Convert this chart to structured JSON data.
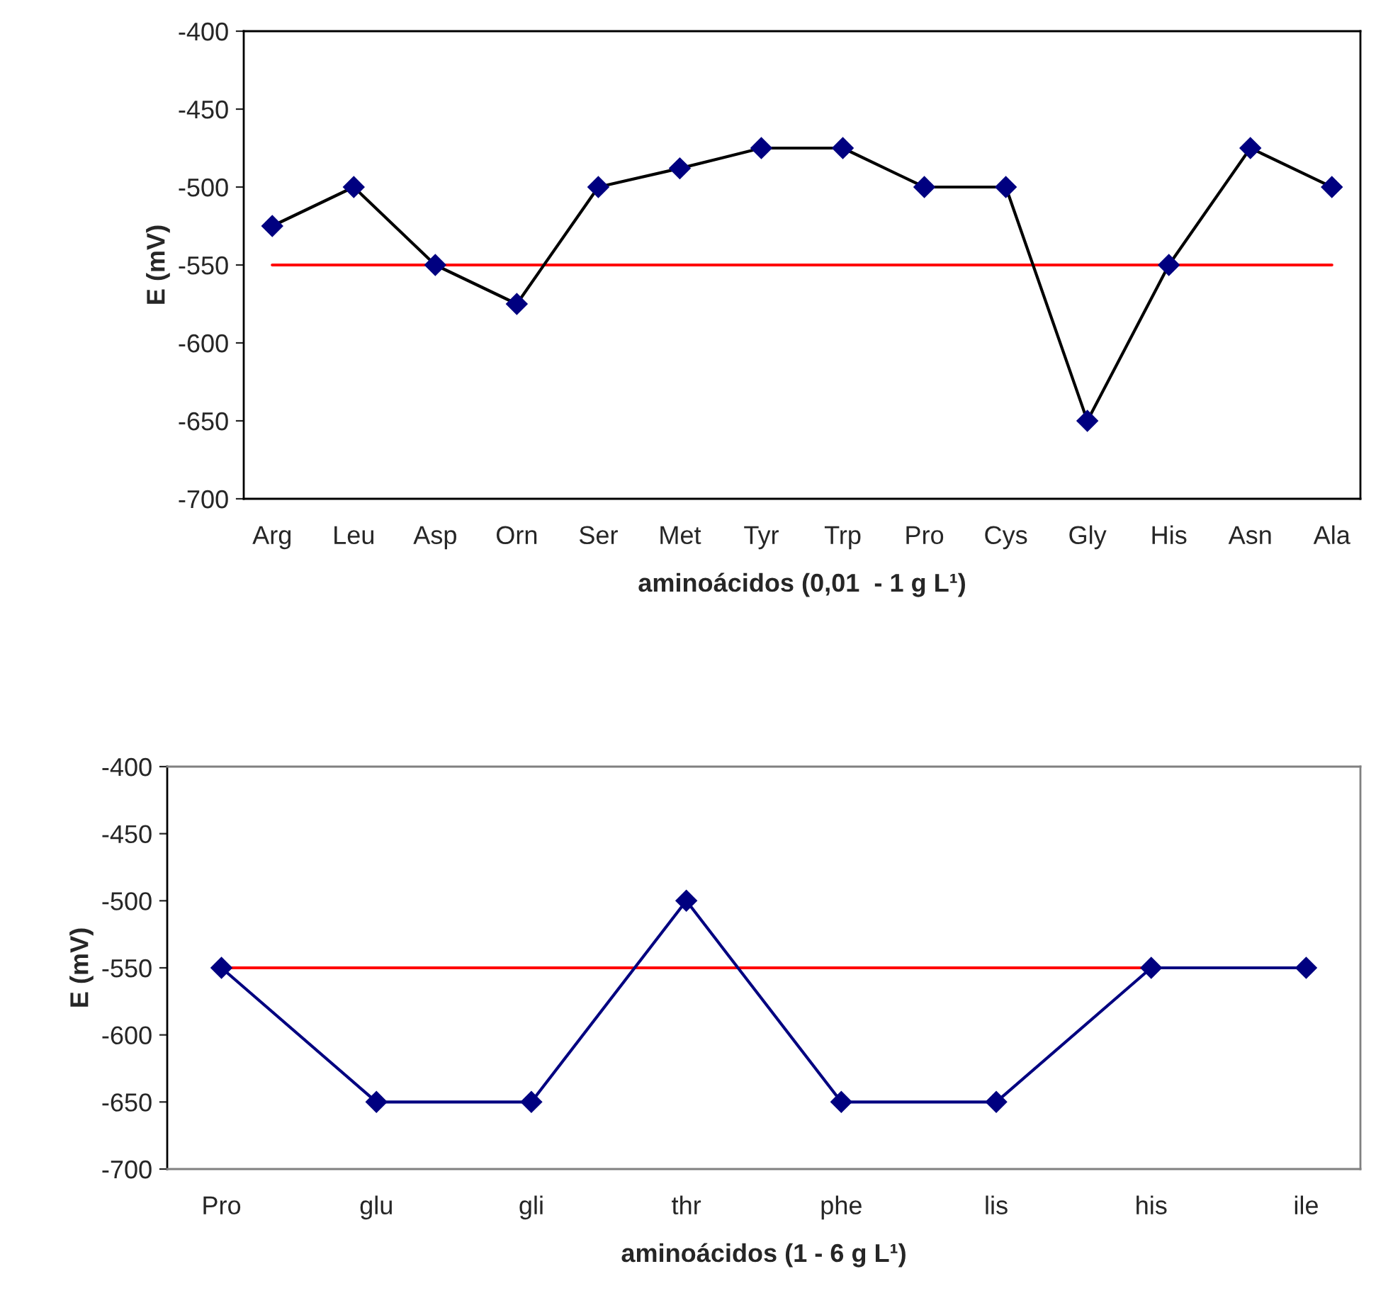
{
  "chart_data": [
    {
      "type": "line",
      "xlabel": "aminoácidos (0,01  - 1 g L¹)",
      "ylabel": "E (mV)",
      "categories": [
        "Arg",
        "Leu",
        "Asp",
        "Orn",
        "Ser",
        "Met",
        "Tyr",
        "Trp",
        "Pro",
        "Cys",
        "Gly",
        "His",
        "Asn",
        "Ala"
      ],
      "series": [
        {
          "color": "#000000",
          "values": [
            -525,
            -500,
            -550,
            -575,
            -500,
            -488,
            -475,
            -475,
            -500,
            -500,
            -650,
            -550,
            -475,
            -500
          ]
        }
      ],
      "ylim": [
        -700,
        -400
      ],
      "yticks": [
        -700,
        -650,
        -600,
        -550,
        -500,
        -450,
        -400
      ],
      "marker": "diamond",
      "line_style": "solid",
      "grid": false,
      "legend": false,
      "ref_lines": [
        {
          "axis": "y",
          "value": -550,
          "color": "#ff0000"
        }
      ]
    },
    {
      "type": "line",
      "xlabel": "aminoácidos (1 - 6 g L¹)",
      "ylabel": "E (mV)",
      "categories": [
        "Pro",
        "glu",
        "gli",
        "thr",
        "phe",
        "lis",
        "his",
        "ile"
      ],
      "series": [
        {
          "color": "#000080",
          "values": [
            -550,
            -650,
            -650,
            -500,
            -650,
            -650,
            -550,
            -550
          ]
        }
      ],
      "ylim": [
        -700,
        -400
      ],
      "yticks": [
        -700,
        -650,
        -600,
        -550,
        -500,
        -450,
        -400
      ],
      "marker": "diamond",
      "line_style": "solid",
      "grid": false,
      "legend": false,
      "ref_lines": [
        {
          "axis": "y",
          "value": -550,
          "color": "#ff0000"
        }
      ]
    }
  ]
}
